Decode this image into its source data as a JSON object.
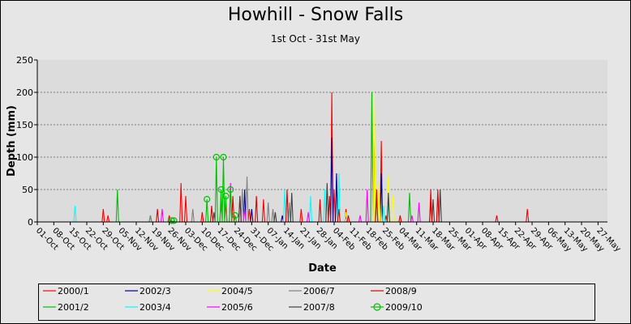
{
  "chart_data": {
    "type": "line",
    "title": "Howhill - Snow Falls",
    "subtitle": "1st Oct - 31st May",
    "xlabel": "Date",
    "ylabel": "Depth (mm)",
    "ylim": [
      0,
      250
    ],
    "yticks": [
      0,
      50,
      100,
      150,
      200,
      250
    ],
    "x_start": "01-Oct",
    "x_end": "31-May",
    "x_tick_labels": [
      "01-Oct",
      "08-Oct",
      "15-Oct",
      "22-Oct",
      "29-Oct",
      "05-Nov",
      "12-Nov",
      "19-Nov",
      "26-Nov",
      "03-Dec",
      "10-Dec",
      "17-Dec",
      "24-Dec",
      "31-Dec",
      "07-Jan",
      "14-Jan",
      "21-Jan",
      "28-Jan",
      "04-Feb",
      "11-Feb",
      "18-Feb",
      "25-Feb",
      "04-Mar",
      "11-Mar",
      "18-Mar",
      "25-Mar",
      "01-Apr",
      "08-Apr",
      "15-Apr",
      "22-Apr",
      "29-Apr",
      "06-May",
      "13-May",
      "20-May",
      "27-May"
    ],
    "grid": "horizontal dashed",
    "legend_position": "bottom",
    "series": [
      {
        "name": "2000/1",
        "color": "#ff0000",
        "points": [
          [
            "29-Oct",
            20
          ],
          [
            "31-Oct",
            10
          ],
          [
            "26-Nov",
            10
          ],
          [
            "01-Dec",
            60
          ],
          [
            "03-Dec",
            40
          ],
          [
            "10-Dec",
            15
          ],
          [
            "20-Dec",
            30
          ],
          [
            "26-Dec",
            40
          ],
          [
            "30-Dec",
            20
          ],
          [
            "05-Jan",
            35
          ],
          [
            "21-Jan",
            20
          ],
          [
            "03-Feb",
            200
          ],
          [
            "04-Feb",
            50
          ],
          [
            "09-Feb",
            20
          ],
          [
            "22-Feb",
            40
          ],
          [
            "24-Feb",
            125
          ],
          [
            "26-Feb",
            10
          ],
          [
            "17-Mar",
            50
          ],
          [
            "14-Apr",
            10
          ],
          [
            "27-Apr",
            20
          ]
        ]
      },
      {
        "name": "2001/2",
        "color": "#00c000",
        "points": [
          [
            "04-Nov",
            50
          ],
          [
            "18-Nov",
            10
          ],
          [
            "18-Dec",
            30
          ],
          [
            "20-Feb",
            200
          ],
          [
            "21-Feb",
            170
          ],
          [
            "08-Mar",
            45
          ]
        ]
      },
      {
        "name": "2002/3",
        "color": "#000090",
        "points": [
          [
            "28-Dec",
            50
          ],
          [
            "31-Dec",
            20
          ],
          [
            "13-Jan",
            10
          ],
          [
            "03-Feb",
            130
          ],
          [
            "05-Feb",
            75
          ],
          [
            "09-Feb",
            10
          ],
          [
            "24-Feb",
            75
          ]
        ]
      },
      {
        "name": "2003/4",
        "color": "#00ffff",
        "points": [
          [
            "17-Oct",
            25
          ],
          [
            "14-Jan",
            50
          ],
          [
            "16-Jan",
            20
          ],
          [
            "25-Jan",
            40
          ],
          [
            "31-Jan",
            50
          ],
          [
            "06-Feb",
            75
          ],
          [
            "25-Feb",
            25
          ],
          [
            "27-Feb",
            30
          ]
        ]
      },
      {
        "name": "2004/5",
        "color": "#ffff00",
        "points": [
          [
            "09-Feb",
            15
          ],
          [
            "21-Feb",
            200
          ],
          [
            "23-Feb",
            60
          ],
          [
            "27-Feb",
            70
          ],
          [
            "01-Mar",
            40
          ]
        ]
      },
      {
        "name": "2005/6",
        "color": "#ff00ff",
        "points": [
          [
            "23-Nov",
            20
          ],
          [
            "22-Dec",
            60
          ],
          [
            "28-Dec",
            20
          ],
          [
            "24-Jan",
            15
          ],
          [
            "15-Feb",
            10
          ],
          [
            "18-Feb",
            50
          ],
          [
            "09-Mar",
            10
          ],
          [
            "12-Mar",
            30
          ]
        ]
      },
      {
        "name": "2006/7",
        "color": "#808080",
        "points": [
          [
            "18-Nov",
            10
          ],
          [
            "06-Dec",
            20
          ],
          [
            "27-Dec",
            50
          ],
          [
            "29-Dec",
            70
          ],
          [
            "07-Jan",
            30
          ],
          [
            "09-Jan",
            20
          ],
          [
            "16-Jan",
            30
          ],
          [
            "20-Mar",
            40
          ]
        ]
      },
      {
        "name": "2007/8",
        "color": "#404040",
        "points": [
          [
            "15-Dec",
            15
          ],
          [
            "26-Dec",
            40
          ],
          [
            "10-Jan",
            15
          ],
          [
            "17-Jan",
            45
          ],
          [
            "01-Feb",
            60
          ],
          [
            "27-Feb",
            45
          ],
          [
            "18-Mar",
            35
          ],
          [
            "21-Mar",
            50
          ]
        ]
      },
      {
        "name": "2008/9",
        "color": "#e00000",
        "points": [
          [
            "21-Nov",
            20
          ],
          [
            "14-Dec",
            25
          ],
          [
            "23-Dec",
            40
          ],
          [
            "02-Jan",
            40
          ],
          [
            "15-Jan",
            50
          ],
          [
            "29-Jan",
            35
          ],
          [
            "02-Feb",
            40
          ],
          [
            "06-Feb",
            20
          ],
          [
            "10-Feb",
            10
          ],
          [
            "22-Feb",
            50
          ],
          [
            "04-Mar",
            10
          ],
          [
            "17-Mar",
            30
          ],
          [
            "20-Mar",
            50
          ]
        ]
      },
      {
        "name": "2009/10",
        "color": "#00c000",
        "marker": "circle",
        "points": [
          [
            "27-Nov",
            2
          ],
          [
            "28-Nov",
            2
          ],
          [
            "12-Dec",
            35
          ],
          [
            "16-Dec",
            100
          ],
          [
            "18-Dec",
            50
          ],
          [
            "19-Dec",
            100
          ],
          [
            "20-Dec",
            40
          ],
          [
            "22-Dec",
            50
          ],
          [
            "24-Dec",
            10
          ]
        ]
      }
    ]
  }
}
